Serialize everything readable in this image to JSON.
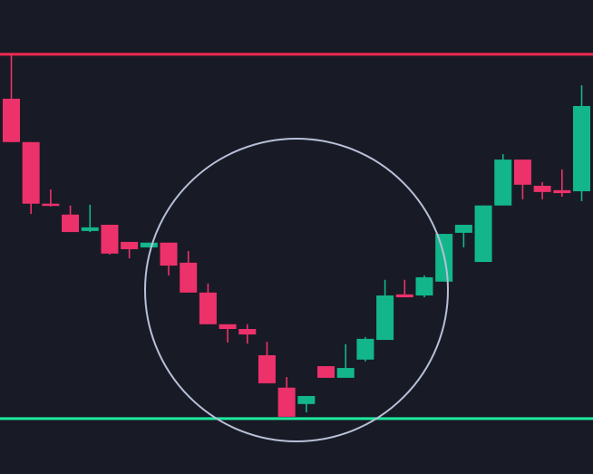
{
  "chart_data": {
    "type": "candlestick",
    "title": "",
    "xlabel": "",
    "ylabel": "",
    "ylim": [
      -15.2,
      114.9
    ],
    "grid": false,
    "axes_visible": false,
    "colors": {
      "background": "#181b25",
      "up": "#13b68a",
      "down": "#ed316b",
      "resistance": "#f2294f",
      "support": "#1de9a0",
      "annotation": "#b8c0d8"
    },
    "horizontal_lines": [
      {
        "role": "resistance",
        "value": 100
      },
      {
        "role": "support",
        "value": 0
      }
    ],
    "annotation": {
      "shape": "circle",
      "center_candle_index": 15
    },
    "candles": [
      {
        "o": 87.8,
        "h": 100,
        "l": 75.9,
        "c": 75.9
      },
      {
        "o": 75.9,
        "h": 75.9,
        "l": 56.2,
        "c": 59.0
      },
      {
        "o": 59.0,
        "h": 62.9,
        "l": 58.2,
        "c": 58.5
      },
      {
        "o": 56.0,
        "h": 58.5,
        "l": 51.2,
        "c": 51.2
      },
      {
        "o": 51.5,
        "h": 58.7,
        "l": 51.2,
        "c": 52.5
      },
      {
        "o": 53.2,
        "h": 53.2,
        "l": 45.0,
        "c": 45.3
      },
      {
        "o": 48.5,
        "h": 48.5,
        "l": 44.0,
        "c": 46.5
      },
      {
        "o": 47.0,
        "h": 48.3,
        "l": 47.0,
        "c": 48.3
      },
      {
        "o": 48.3,
        "h": 48.3,
        "l": 39.3,
        "c": 42.0
      },
      {
        "o": 42.8,
        "h": 46.0,
        "l": 34.6,
        "c": 34.6
      },
      {
        "o": 34.6,
        "h": 37.1,
        "l": 25.9,
        "c": 25.9
      },
      {
        "o": 25.9,
        "h": 25.9,
        "l": 20.9,
        "c": 24.6
      },
      {
        "o": 24.6,
        "h": 25.9,
        "l": 20.6,
        "c": 23.1
      },
      {
        "o": 17.4,
        "h": 21.1,
        "l": 9.7,
        "c": 9.7
      },
      {
        "o": 8.5,
        "h": 11.4,
        "l": 0.5,
        "c": 0.5
      },
      {
        "o": 4.0,
        "h": 6.2,
        "l": 1.7,
        "c": 6.2
      },
      {
        "o": 14.4,
        "h": 14.4,
        "l": 11.2,
        "c": 11.2
      },
      {
        "o": 11.2,
        "h": 20.4,
        "l": 11.2,
        "c": 13.9
      },
      {
        "o": 16.2,
        "h": 22.4,
        "l": 15.7,
        "c": 21.9
      },
      {
        "o": 21.6,
        "h": 38.1,
        "l": 21.6,
        "c": 33.8
      },
      {
        "o": 34.1,
        "h": 38.1,
        "l": 33.3,
        "c": 33.3
      },
      {
        "o": 33.8,
        "h": 39.3,
        "l": 33.3,
        "c": 38.8
      },
      {
        "o": 37.6,
        "h": 50.7,
        "l": 37.6,
        "c": 50.7
      },
      {
        "o": 51.0,
        "h": 53.2,
        "l": 47.0,
        "c": 53.2
      },
      {
        "o": 43.0,
        "h": 58.5,
        "l": 43.0,
        "c": 58.5
      },
      {
        "o": 58.5,
        "h": 72.6,
        "l": 58.5,
        "c": 71.1
      },
      {
        "o": 71.1,
        "h": 71.1,
        "l": 60.2,
        "c": 64.2
      },
      {
        "o": 63.9,
        "h": 64.9,
        "l": 60.2,
        "c": 62.2
      },
      {
        "o": 62.7,
        "h": 68.4,
        "l": 60.9,
        "c": 61.9
      },
      {
        "o": 62.4,
        "h": 91.5,
        "l": 59.7,
        "c": 85.8
      }
    ]
  }
}
